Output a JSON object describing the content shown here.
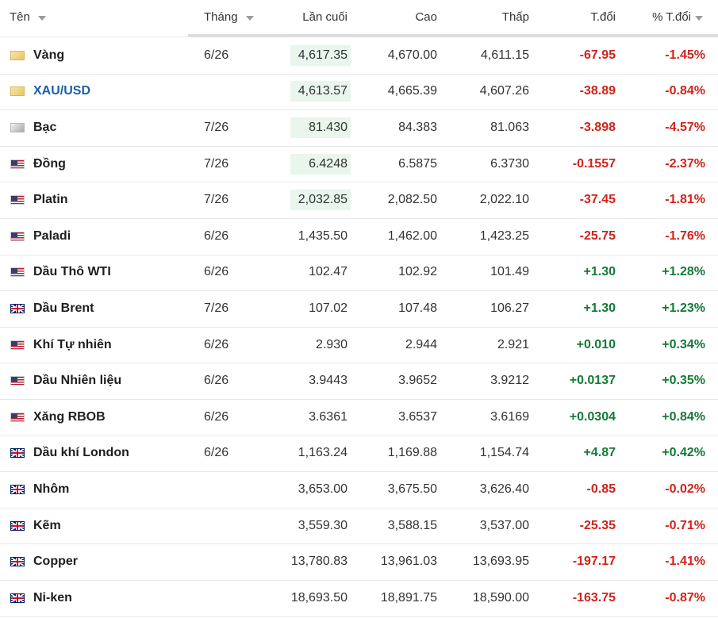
{
  "table": {
    "header": [
      "Tên",
      "Tháng",
      "Lần cuối",
      "Cao",
      "Thấp",
      "T.đổi",
      "% T.đổi"
    ],
    "rows": [
      {
        "name": "Vàng",
        "month": "6/26",
        "last": "4,617.35",
        "high": "4,670.00",
        "low": "4,611.15",
        "change": "-67.95",
        "pct": "-1.45%"
      },
      {
        "name": "XAU/USD",
        "month": null,
        "last": "4,613.57",
        "high": "4,665.39",
        "low": "4,607.26",
        "change": "-38.89",
        "pct": "-0.84%"
      },
      {
        "name": "Bạc",
        "month": "7/26",
        "last": "81.430",
        "high": "84.383",
        "low": "81.063",
        "change": "-3.898",
        "pct": "-4.57%"
      },
      {
        "name": "Đồng",
        "month": "7/26",
        "last": "6.4248",
        "high": "6.5875",
        "low": "6.3730",
        "change": "-0.1557",
        "pct": "-2.37%"
      },
      {
        "name": "Platin",
        "month": "7/26",
        "last": "2,032.85",
        "high": "2,082.50",
        "low": "2,022.10",
        "change": "-37.45",
        "pct": "-1.81%"
      },
      {
        "name": "Paladi",
        "month": "6/26",
        "last": "1,435.50",
        "high": "1,462.00",
        "low": "1,423.25",
        "change": "-25.75",
        "pct": "-1.76%"
      },
      {
        "name": "Dầu Thô WTI",
        "month": "6/26",
        "last": "102.47",
        "high": "102.92",
        "low": "101.49",
        "change": "+1.30",
        "pct": "+1.28%"
      },
      {
        "name": "Dầu Brent",
        "month": "7/26",
        "last": "107.02",
        "high": "107.48",
        "low": "106.27",
        "change": "+1.30",
        "pct": "+1.23%"
      },
      {
        "name": "Khí Tự nhiên",
        "month": "6/26",
        "last": "2.930",
        "high": "2.944",
        "low": "2.921",
        "change": "+0.010",
        "pct": "+0.34%"
      },
      {
        "name": "Dầu Nhiên liệu",
        "month": "6/26",
        "last": "3.9443",
        "high": "3.9652",
        "low": "3.9212",
        "change": "+0.0137",
        "pct": "+0.35%"
      },
      {
        "name": "Xăng RBOB",
        "month": "6/26",
        "last": "3.6361",
        "high": "3.6537",
        "low": "3.6169",
        "change": "+0.0304",
        "pct": "+0.84%"
      },
      {
        "name": "Dầu khí London",
        "month": "6/26",
        "last": "1,163.24",
        "high": "1,169.88",
        "low": "1,154.74",
        "change": "+4.87",
        "pct": "+0.42%"
      },
      {
        "name": "Nhôm",
        "month": null,
        "last": "3,653.00",
        "high": "3,675.50",
        "low": "3,626.40",
        "change": "-0.85",
        "pct": "-0.02%"
      },
      {
        "name": "Kẽm",
        "month": null,
        "last": "3,559.30",
        "high": "3,588.15",
        "low": "3,537.00",
        "change": "-25.35",
        "pct": "-0.71%"
      },
      {
        "name": "Copper",
        "month": null,
        "last": "13,780.83",
        "high": "13,961.03",
        "low": "13,693.95",
        "change": "-197.17",
        "pct": "-1.41%"
      },
      {
        "name": "Ni-ken",
        "month": null,
        "last": "18,693.50",
        "high": "18,891.75",
        "low": "18,590.00",
        "change": "-163.75",
        "pct": "-0.87%"
      }
    ]
  }
}
